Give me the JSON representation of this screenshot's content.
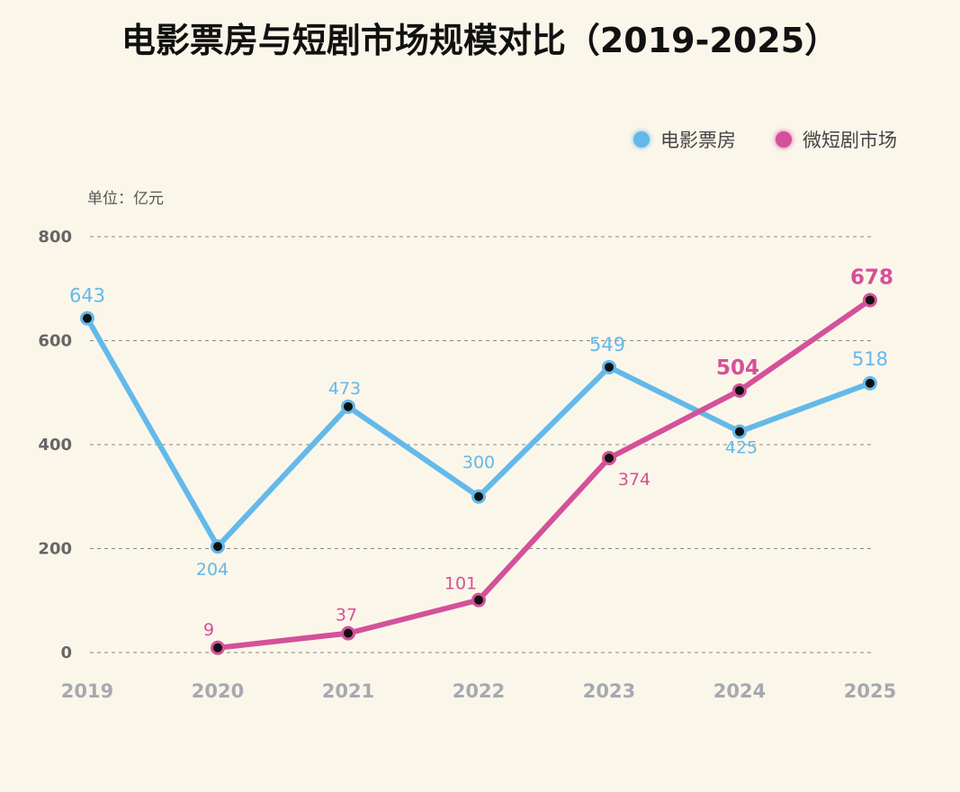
{
  "title": "电影票房与短剧市场规模对比（2019-2025）",
  "unit_label": "单位：亿元",
  "chart_data": {
    "type": "line",
    "title": "电影票房与短剧市场规模对比（2019-2025）",
    "xlabel": "",
    "ylabel": "单位：亿元",
    "categories": [
      "2019",
      "2020",
      "2021",
      "2022",
      "2023",
      "2024",
      "2025"
    ],
    "ylim": [
      0,
      800
    ],
    "yticks": [
      "0",
      "200",
      "400",
      "600",
      "800"
    ],
    "grid": true,
    "legend_position": "top-right",
    "series": [
      {
        "name": "电影票房",
        "color": "#63b9ea",
        "values": [
          643,
          204,
          473,
          300,
          549,
          425,
          518
        ]
      },
      {
        "name": "微短剧市场",
        "color": "#d4519a",
        "values": [
          null,
          9,
          37,
          101,
          374,
          504,
          678
        ]
      }
    ]
  }
}
